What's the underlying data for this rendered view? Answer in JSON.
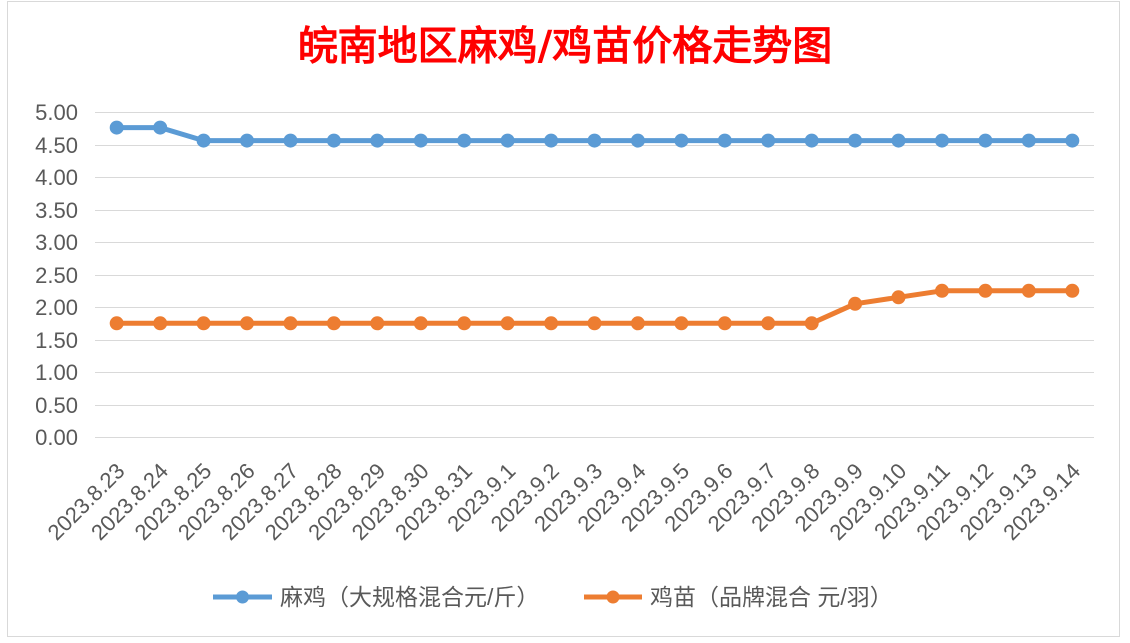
{
  "chart_data": {
    "type": "line",
    "title": "皖南地区麻鸡/鸡苗价格走势图",
    "title_color": "#FF0000",
    "categories": [
      "2023.8.23",
      "2023.8.24",
      "2023.8.25",
      "2023.8.26",
      "2023.8.27",
      "2023.8.28",
      "2023.8.29",
      "2023.8.30",
      "2023.8.31",
      "2023.9.1",
      "2023.9.2",
      "2023.9.3",
      "2023.9.4",
      "2023.9.5",
      "2023.9.6",
      "2023.9.7",
      "2023.9.8",
      "2023.9.9",
      "2023.9.10",
      "2023.9.11",
      "2023.9.12",
      "2023.9.13",
      "2023.9.14"
    ],
    "series": [
      {
        "name": "麻鸡（大规格混合元/斤）",
        "color": "#5B9BD5",
        "values": [
          4.76,
          4.76,
          4.56,
          4.56,
          4.56,
          4.56,
          4.56,
          4.56,
          4.56,
          4.56,
          4.56,
          4.56,
          4.56,
          4.56,
          4.56,
          4.56,
          4.56,
          4.56,
          4.56,
          4.56,
          4.56,
          4.56,
          4.56
        ]
      },
      {
        "name": "鸡苗（品牌混合 元/羽）",
        "color": "#ED7D31",
        "values": [
          1.75,
          1.75,
          1.75,
          1.75,
          1.75,
          1.75,
          1.75,
          1.75,
          1.75,
          1.75,
          1.75,
          1.75,
          1.75,
          1.75,
          1.75,
          1.75,
          1.75,
          2.05,
          2.15,
          2.25,
          2.25,
          2.25,
          2.25
        ]
      }
    ],
    "ylim": [
      0,
      5
    ],
    "yticks": [
      "0.00",
      "0.50",
      "1.00",
      "1.50",
      "2.00",
      "2.50",
      "3.00",
      "3.50",
      "4.00",
      "4.50",
      "5.00"
    ],
    "grid": true,
    "legend": "bottom",
    "gridline_color": "#D9D9D9",
    "label_color": "#595959"
  }
}
